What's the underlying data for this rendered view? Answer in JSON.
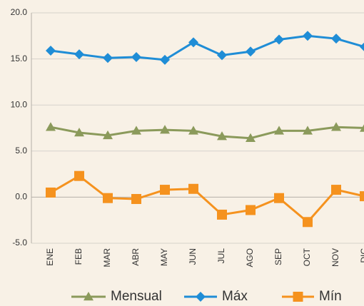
{
  "chart_data": {
    "type": "line",
    "categories": [
      "ENE",
      "FEB",
      "MAR",
      "ABR",
      "MAY",
      "JUN",
      "JUL",
      "AGO",
      "SEP",
      "OCT",
      "NOV",
      "DIC"
    ],
    "series": [
      {
        "name": "Mensual",
        "color": "#8b9a5b",
        "marker": "triangle",
        "values": [
          7.6,
          7.0,
          6.7,
          7.2,
          7.3,
          7.2,
          6.6,
          6.4,
          7.2,
          7.2,
          7.6,
          7.5
        ]
      },
      {
        "name": "Máx",
        "color": "#1f8dd6",
        "marker": "diamond",
        "values": [
          15.9,
          15.5,
          15.1,
          15.2,
          14.9,
          16.8,
          15.4,
          15.8,
          17.1,
          17.5,
          17.2,
          16.3
        ]
      },
      {
        "name": "Mín",
        "color": "#f5921e",
        "marker": "square",
        "values": [
          0.5,
          2.3,
          -0.1,
          -0.2,
          0.8,
          0.9,
          -1.9,
          -1.4,
          -0.1,
          -2.7,
          0.8,
          0.1
        ]
      }
    ],
    "ylim": [
      -5,
      20
    ],
    "yticks": [
      {
        "value": -5,
        "label": "-5.0"
      },
      {
        "value": 0,
        "label": "0.0"
      },
      {
        "value": 5,
        "label": "5.0"
      },
      {
        "value": 10,
        "label": "10.0"
      },
      {
        "value": 15,
        "label": "15.0"
      },
      {
        "value": 20,
        "label": "20.0"
      }
    ],
    "grid": true,
    "legend": "bottom"
  }
}
